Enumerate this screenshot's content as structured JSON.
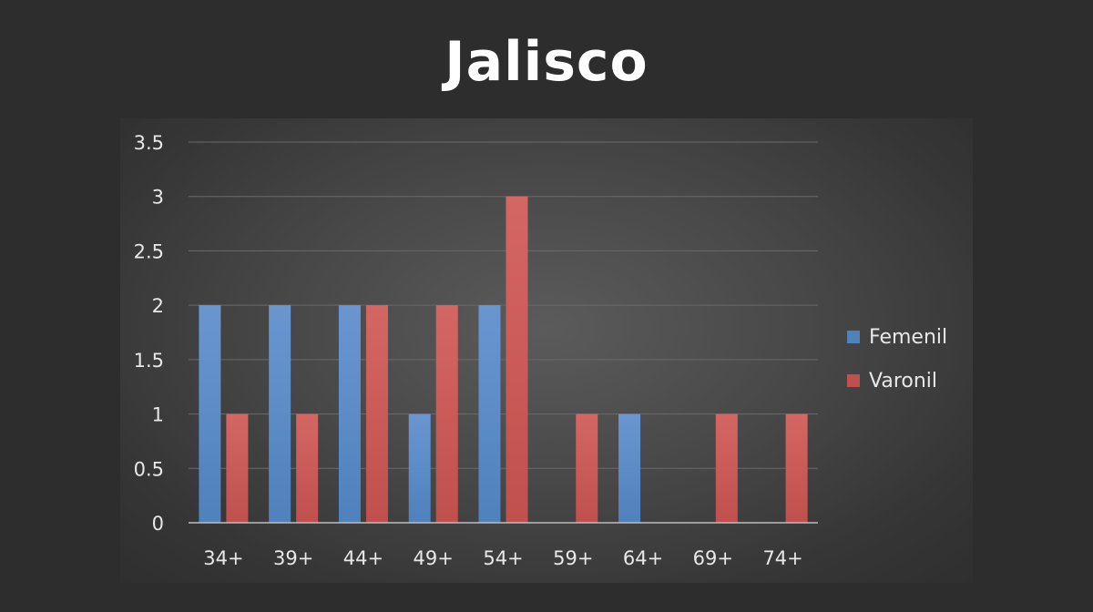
{
  "chart_data": {
    "type": "bar",
    "title": "Jalisco",
    "categories": [
      "34+",
      "39+",
      "44+",
      "49+",
      "54+",
      "59+",
      "64+",
      "69+",
      "74+"
    ],
    "series": [
      {
        "name": "Femenil",
        "color": "#4f81bd",
        "values": [
          2,
          2,
          2,
          1,
          2,
          0,
          1,
          0,
          0
        ]
      },
      {
        "name": "Varonil",
        "color": "#c0504d",
        "values": [
          1,
          1,
          2,
          2,
          3,
          1,
          0,
          1,
          1
        ]
      }
    ],
    "yticks": [
      "0",
      "0.5",
      "1",
      "1.5",
      "2",
      "2.5",
      "3",
      "3.5"
    ],
    "ylim": [
      0,
      3.5
    ],
    "grid": true,
    "legend_position": "right"
  },
  "colors": {
    "background": "#2d2d2d",
    "femenil": "#4f81bd",
    "varonil": "#c0504d",
    "text": "#e8e8e8"
  }
}
